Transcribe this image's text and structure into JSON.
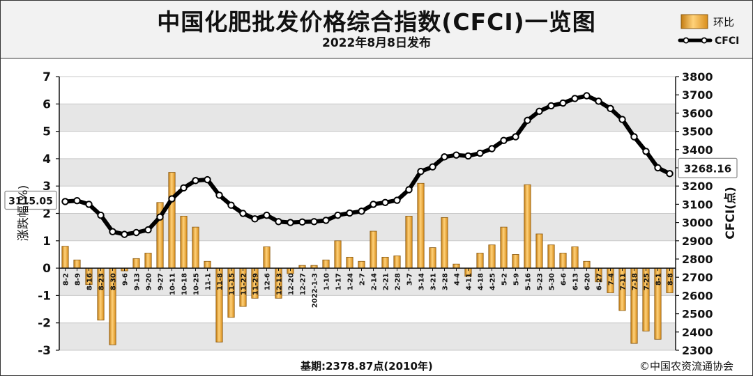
{
  "title": "中国化肥批发价格综合指数(CFCI)一览图",
  "subtitle": "2022年8月8日发布",
  "footer_base": "基期:2378.87点(2010年)",
  "footer_credit": "©中国农资流通协会",
  "chart_data": {
    "type": "bar+line",
    "categories": [
      "8-2",
      "8-9",
      "8-16",
      "8-23",
      "8-30",
      "9-6",
      "9-13",
      "9-20",
      "9-27",
      "10-11",
      "10-18",
      "10-25",
      "11-1",
      "11-8",
      "11-15",
      "11-22",
      "11-29",
      "12-6",
      "12-13",
      "12-20",
      "12-27",
      "2022-1-3",
      "1-10",
      "1-17",
      "1-24",
      "2-7",
      "2-14",
      "2-21",
      "2-28",
      "3-7",
      "3-14",
      "3-21",
      "3-28",
      "4-4",
      "4-11",
      "4-18",
      "4-25",
      "5-2",
      "5-9",
      "5-16",
      "5-23",
      "5-30",
      "6-6",
      "6-13",
      "6-20",
      "6-27",
      "7-4",
      "7-11",
      "7-18",
      "7-25",
      "8-1",
      "8-8"
    ],
    "series": [
      {
        "name": "环比",
        "type": "bar",
        "axis": "left",
        "values": [
          0.8,
          0.3,
          -0.6,
          -1.9,
          -2.8,
          -0.1,
          0.35,
          0.55,
          2.4,
          3.5,
          1.9,
          1.5,
          0.25,
          -2.7,
          -1.8,
          -1.4,
          -1.1,
          0.78,
          -1.1,
          -0.2,
          0.1,
          0.1,
          0.3,
          1.0,
          0.4,
          0.25,
          1.35,
          0.4,
          0.45,
          1.9,
          3.1,
          0.75,
          1.85,
          0.15,
          -0.3,
          0.55,
          0.85,
          1.5,
          0.5,
          3.05,
          1.25,
          0.85,
          0.55,
          0.78,
          0.25,
          -0.5,
          -0.9,
          -1.55,
          -2.75,
          -2.3,
          -2.6,
          -0.9
        ]
      },
      {
        "name": "CFCI",
        "type": "line",
        "axis": "right",
        "values": [
          3115,
          3120,
          3100,
          3040,
          2950,
          2935,
          2945,
          2960,
          3030,
          3130,
          3190,
          3230,
          3235,
          3150,
          3095,
          3050,
          3020,
          3040,
          3005,
          3000,
          3003,
          3005,
          3012,
          3040,
          3052,
          3062,
          3100,
          3110,
          3122,
          3180,
          3280,
          3305,
          3360,
          3370,
          3365,
          3380,
          3405,
          3450,
          3470,
          3560,
          3610,
          3640,
          3655,
          3680,
          3695,
          3665,
          3625,
          3565,
          3470,
          3390,
          3300,
          3268.16
        ]
      }
    ],
    "left_axis": {
      "label": "涨跌幅(%)",
      "min": -3,
      "max": 7,
      "ticks": [
        "-3",
        "-2",
        "-1",
        "0",
        "1",
        "2",
        "3",
        "4",
        "5",
        "6",
        "7"
      ]
    },
    "right_axis": {
      "label": "CFCI(点)",
      "min": 2300,
      "max": 3800,
      "ticks": [
        "2300",
        "2400",
        "2500",
        "2600",
        "2700",
        "2800",
        "2900",
        "3000",
        "3100",
        "3200",
        "3300",
        "3400",
        "3500",
        "3600",
        "3700",
        "3800"
      ]
    },
    "annotations": {
      "start_value": "3115.05",
      "end_value": "3268.16"
    },
    "legend_position": "top-right",
    "grid": true,
    "colors": {
      "bar": "#f5a623",
      "bar_edge": "#8a5a12",
      "line": "#000000",
      "marker_fill": "#ffffff",
      "grid_band": "#e6e6e6"
    }
  }
}
